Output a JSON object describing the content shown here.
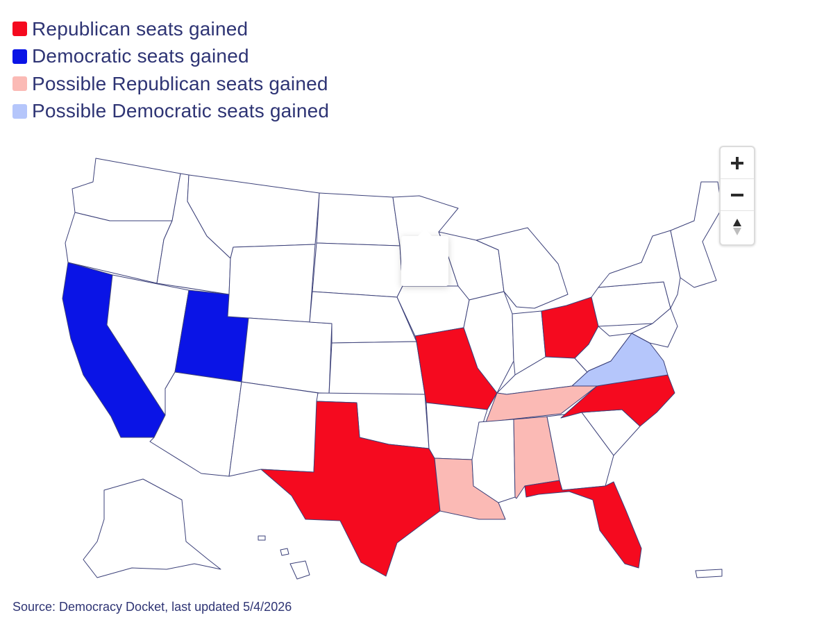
{
  "legend": {
    "items": [
      {
        "label": "Republican seats gained",
        "color": "#f50a1f"
      },
      {
        "label": "Democratic seats gained",
        "color": "#0a14e6"
      },
      {
        "label": "Possible Republican seats gained",
        "color": "#fbbab5"
      },
      {
        "label": "Possible Democratic seats gained",
        "color": "#b5c6fb"
      }
    ]
  },
  "map": {
    "default_color": "#ffffff",
    "border_color": "#3a3f78",
    "states": {
      "Republican seats gained": [
        "Texas",
        "Missouri",
        "Ohio",
        "North Carolina",
        "Florida"
      ],
      "Democratic seats gained": [
        "California",
        "Utah"
      ],
      "Possible Republican seats gained": [
        "Louisiana",
        "Tennessee",
        "Alabama"
      ],
      "Possible Democratic seats gained": [
        "Virginia"
      ]
    }
  },
  "controls": {
    "zoom_in_icon": "plus-icon",
    "zoom_out_icon": "minus-icon",
    "reset_icon": "compass-arrows-icon"
  },
  "footer": {
    "source": "Source: Democracy Docket, last updated 5/4/2026"
  }
}
